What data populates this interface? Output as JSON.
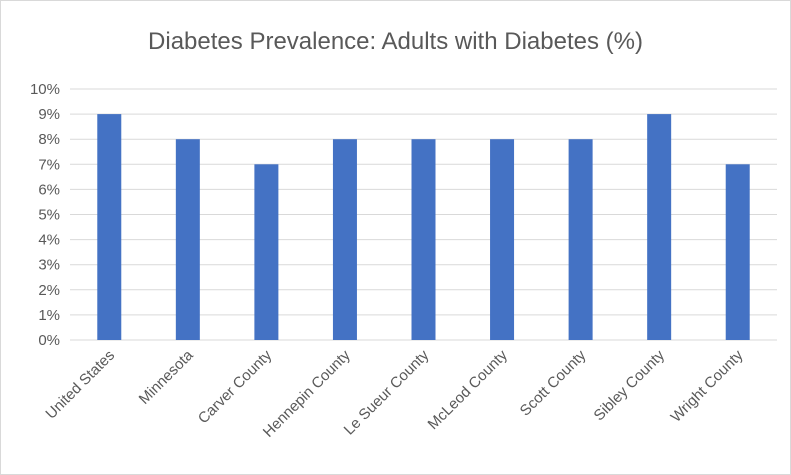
{
  "chart_data": {
    "type": "bar",
    "title": "Diabetes Prevalence: Adults with Diabetes (%)",
    "xlabel": "",
    "ylabel": "",
    "categories": [
      "United States",
      "Minnesota",
      "Carver County",
      "Hennepin County",
      "Le Sueur County",
      "McLeod County",
      "Scott County",
      "Sibley County",
      "Wright County"
    ],
    "values": [
      9,
      8,
      7,
      8,
      8,
      8,
      8,
      9,
      7
    ],
    "ylim": [
      0,
      10
    ],
    "yticks": [
      "0%",
      "1%",
      "2%",
      "3%",
      "4%",
      "5%",
      "6%",
      "7%",
      "8%",
      "9%",
      "10%"
    ],
    "grid": true,
    "bar_color": "#4472c4",
    "gridline_color": "#d9d9d9"
  }
}
